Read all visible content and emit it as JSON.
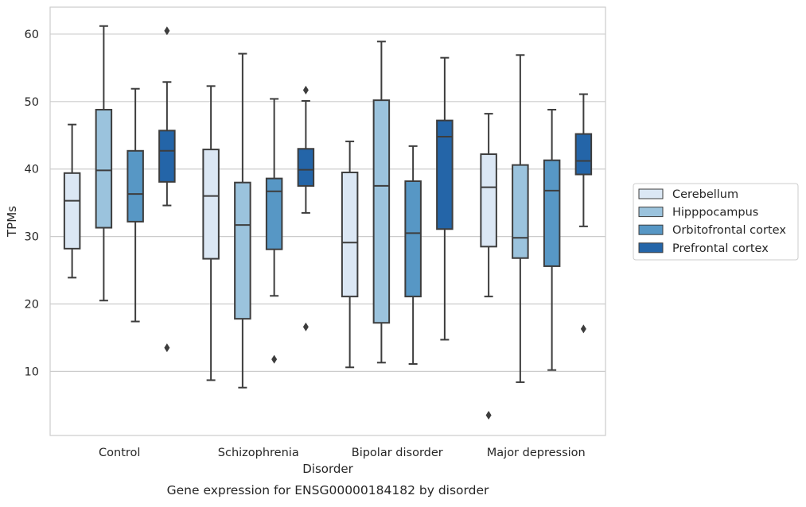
{
  "chart_data": {
    "type": "boxplot",
    "caption": "Gene expression for ENSG00000184182 by disorder",
    "xlabel": "Disorder",
    "ylabel": "TPMs",
    "ylim": [
      0.5,
      64
    ],
    "yticks": [
      10,
      20,
      30,
      40,
      50,
      60
    ],
    "grid": "horizontal",
    "legend_position": "right",
    "categories": [
      "Control",
      "Schizophrenia",
      "Bipolar disorder",
      "Major depression"
    ],
    "series": [
      {
        "name": "Cerebellum",
        "color": "#dbe7f4",
        "boxes": [
          {
            "whisker_low": 23.9,
            "q1": 28.2,
            "median": 35.3,
            "q3": 39.4,
            "whisker_high": 46.6,
            "outliers": []
          },
          {
            "whisker_low": 8.7,
            "q1": 26.7,
            "median": 36.0,
            "q3": 42.9,
            "whisker_high": 52.3,
            "outliers": []
          },
          {
            "whisker_low": 10.6,
            "q1": 21.1,
            "median": 29.1,
            "q3": 39.5,
            "whisker_high": 44.1,
            "outliers": []
          },
          {
            "whisker_low": 21.1,
            "q1": 28.5,
            "median": 37.3,
            "q3": 42.2,
            "whisker_high": 48.2,
            "outliers": [
              3.5
            ]
          }
        ]
      },
      {
        "name": "Hipppocampus",
        "color": "#9bc3dd",
        "boxes": [
          {
            "whisker_low": 20.5,
            "q1": 31.3,
            "median": 39.8,
            "q3": 48.8,
            "whisker_high": 61.2,
            "outliers": []
          },
          {
            "whisker_low": 7.6,
            "q1": 17.8,
            "median": 31.7,
            "q3": 38.0,
            "whisker_high": 57.1,
            "outliers": []
          },
          {
            "whisker_low": 11.3,
            "q1": 17.2,
            "median": 37.5,
            "q3": 50.2,
            "whisker_high": 58.9,
            "outliers": []
          },
          {
            "whisker_low": 8.4,
            "q1": 26.8,
            "median": 29.8,
            "q3": 40.6,
            "whisker_high": 56.9,
            "outliers": []
          }
        ]
      },
      {
        "name": "Orbitofrontal cortex",
        "color": "#5797c5",
        "boxes": [
          {
            "whisker_low": 17.4,
            "q1": 32.2,
            "median": 36.3,
            "q3": 42.7,
            "whisker_high": 51.9,
            "outliers": []
          },
          {
            "whisker_low": 21.2,
            "q1": 28.1,
            "median": 36.7,
            "q3": 38.6,
            "whisker_high": 50.4,
            "outliers": [
              11.8
            ]
          },
          {
            "whisker_low": 11.1,
            "q1": 21.1,
            "median": 30.5,
            "q3": 38.2,
            "whisker_high": 43.4,
            "outliers": []
          },
          {
            "whisker_low": 10.2,
            "q1": 25.6,
            "median": 36.8,
            "q3": 41.3,
            "whisker_high": 48.8,
            "outliers": []
          }
        ]
      },
      {
        "name": "Prefrontal cortex",
        "color": "#2465a8",
        "boxes": [
          {
            "whisker_low": 34.6,
            "q1": 38.1,
            "median": 42.7,
            "q3": 45.7,
            "whisker_high": 52.9,
            "outliers": [
              60.5,
              13.5
            ]
          },
          {
            "whisker_low": 33.5,
            "q1": 37.5,
            "median": 39.9,
            "q3": 43.0,
            "whisker_high": 50.1,
            "outliers": [
              51.7,
              16.6
            ]
          },
          {
            "whisker_low": 14.7,
            "q1": 31.1,
            "median": 44.8,
            "q3": 47.2,
            "whisker_high": 56.5,
            "outliers": []
          },
          {
            "whisker_low": 31.5,
            "q1": 39.2,
            "median": 41.2,
            "q3": 45.2,
            "whisker_high": 51.1,
            "outliers": [
              16.3
            ]
          }
        ]
      }
    ]
  }
}
